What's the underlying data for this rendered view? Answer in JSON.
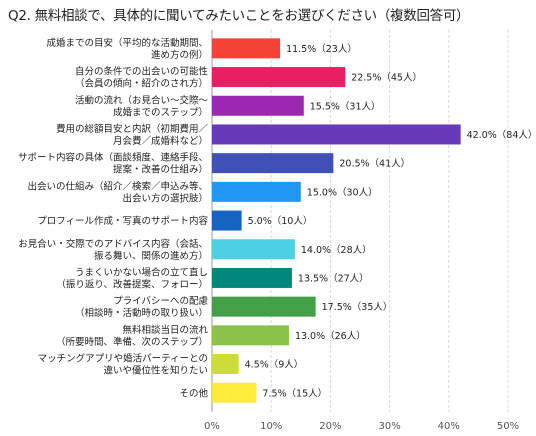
{
  "chart_data": {
    "type": "bar",
    "orientation": "horizontal",
    "title": "Q2. 無料相談で、具体的に聞いてみたいことをお選びください（複数回答可）",
    "categories": [
      [
        "成婚までの目安（平均的な活動期間、",
        "進め方の例）"
      ],
      [
        "自分の条件での出会いの可能性",
        "（会員の傾向・紹介のされ方）"
      ],
      [
        "活動の流れ（お見合い〜交際〜",
        "成婚までのステップ）"
      ],
      [
        "費用の総額目安と内訳（初期費用／",
        "月会費／成婚料など）"
      ],
      [
        "サポート内容の具体（面談頻度、連絡手段、",
        "提案・改善の仕組み）"
      ],
      [
        "出会いの仕組み（紹介／検索／申込み等、",
        "出会い方の選択肢）"
      ],
      [
        "プロフィール作成・写真のサポート内容"
      ],
      [
        "お見合い・交際でのアドバイス内容（会話、",
        "振る舞い、関係の進め方）"
      ],
      [
        "うまくいかない場合の立て直し",
        "（振り返り、改善提案、フォロー）"
      ],
      [
        "プライバシーへの配慮",
        "（相談時・活動時の取り扱い）"
      ],
      [
        "無料相談当日の流れ",
        "（所要時間、準備、次のステップ）"
      ],
      [
        "マッチングアプリや婚活パーティーとの",
        "違いや優位性を知りたい"
      ],
      [
        "その他"
      ]
    ],
    "values": [
      11.5,
      22.5,
      15.5,
      42.0,
      20.5,
      15.0,
      5.0,
      14.0,
      13.5,
      17.5,
      13.0,
      4.5,
      7.5
    ],
    "value_labels": [
      "11.5%（23人）",
      "22.5%（45人）",
      "15.5%（31人）",
      "42.0%（84人）",
      "20.5%（41人）",
      "15.0%（30人）",
      "5.0%（10人）",
      "14.0%（28人）",
      "13.5%（27人）",
      "17.5%（35人）",
      "13.0%（26人）",
      "4.5%（9人）",
      "7.5%（15人）"
    ],
    "colors": [
      "#f44336",
      "#e91e63",
      "#9c27b0",
      "#673ab7",
      "#3f51b5",
      "#2196f3",
      "#1565c0",
      "#4dd0e1",
      "#00897b",
      "#43a047",
      "#8bc34a",
      "#cddc39",
      "#ffeb3b"
    ],
    "xlim": [
      0,
      50
    ],
    "xticks": [
      0,
      10,
      20,
      30,
      40,
      50
    ],
    "xtick_labels": [
      "0%",
      "10%",
      "20%",
      "30%",
      "40%",
      "50%"
    ],
    "grid": true
  }
}
